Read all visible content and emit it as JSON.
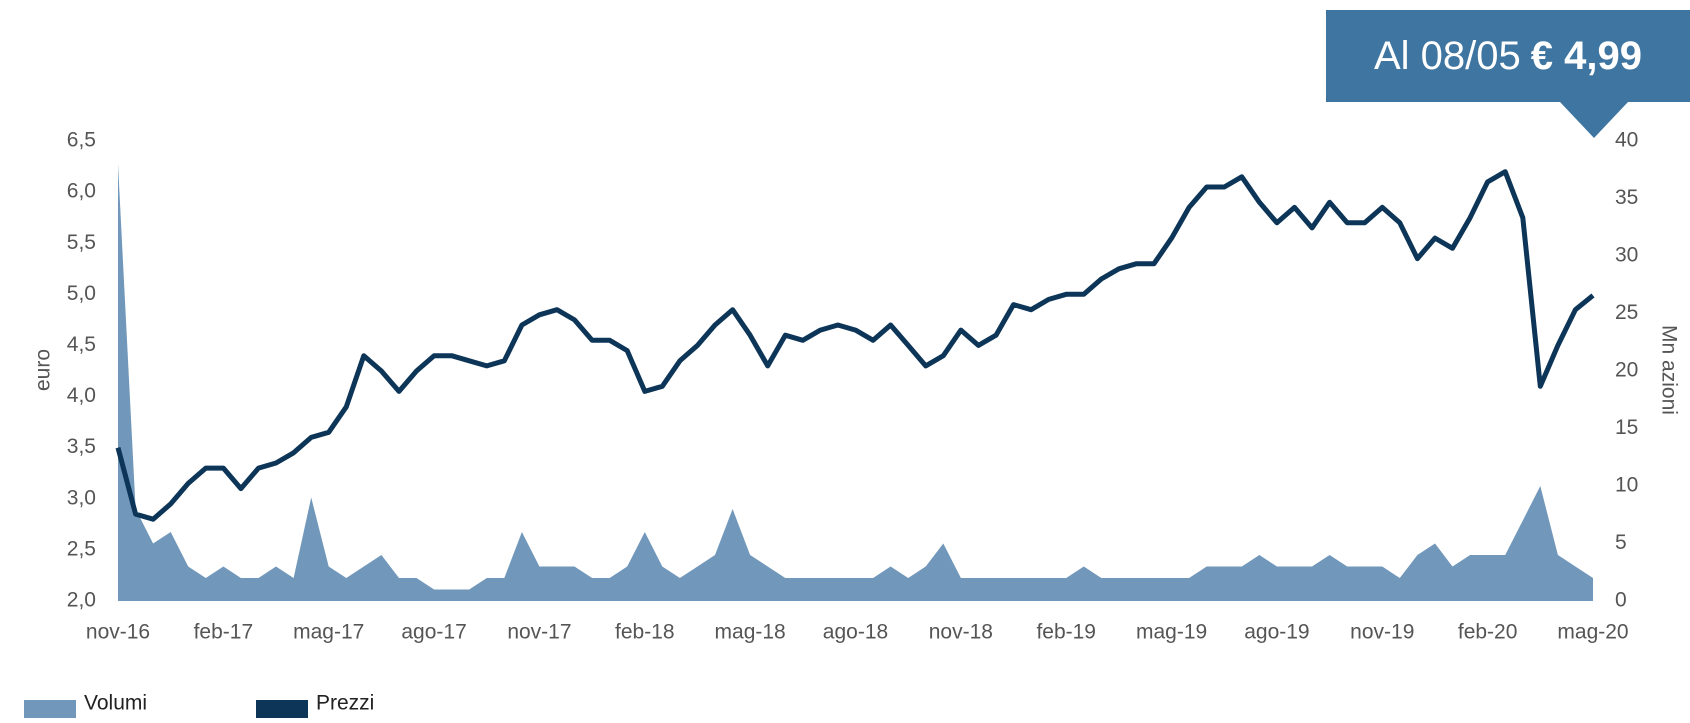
{
  "chart_data": {
    "type": "line-volume",
    "annotation": {
      "text": "Al 08/05",
      "value_label": "€ 4,99"
    },
    "ylabel": "euro",
    "y2label": "Mn azioni",
    "categories": [
      "nov-16",
      null,
      null,
      null,
      null,
      null,
      "feb-17",
      null,
      null,
      null,
      null,
      null,
      "mag-17",
      null,
      null,
      null,
      null,
      null,
      "ago-17",
      null,
      null,
      null,
      null,
      null,
      "nov-17",
      null,
      null,
      null,
      null,
      null,
      "feb-18",
      null,
      null,
      null,
      null,
      null,
      "mag-18",
      null,
      null,
      null,
      null,
      null,
      "ago-18",
      null,
      null,
      null,
      null,
      null,
      "nov-18",
      null,
      null,
      null,
      null,
      null,
      "feb-19",
      null,
      null,
      null,
      null,
      null,
      "mag-19",
      null,
      null,
      null,
      null,
      null,
      "ago-19",
      null,
      null,
      null,
      null,
      null,
      "nov-19",
      null,
      null,
      null,
      null,
      null,
      "feb-20",
      null,
      null,
      null,
      null,
      null,
      "mag-20"
    ],
    "series": [
      {
        "name": "Volumi",
        "color": "#7197ba",
        "axis": "y2",
        "kind": "area",
        "values": [
          38,
          8,
          5,
          6,
          3,
          2,
          3,
          2,
          2,
          3,
          2,
          9,
          3,
          2,
          3,
          4,
          2,
          2,
          1,
          1,
          1,
          2,
          2,
          6,
          3,
          3,
          3,
          2,
          2,
          3,
          6,
          3,
          2,
          3,
          4,
          8,
          4,
          3,
          2,
          2,
          2,
          2,
          2,
          2,
          3,
          2,
          3,
          5,
          2,
          2,
          2,
          2,
          2,
          2,
          2,
          3,
          2,
          2,
          2,
          2,
          2,
          2,
          3,
          3,
          3,
          4,
          3,
          3,
          3,
          4,
          3,
          3,
          3,
          2,
          4,
          5,
          3,
          4,
          4,
          4,
          7,
          10,
          4,
          3,
          2
        ]
      },
      {
        "name": "Prezzi",
        "color": "#0d3558",
        "kind": "line",
        "values": [
          3.5,
          2.85,
          2.8,
          2.95,
          3.15,
          3.3,
          3.3,
          3.1,
          3.3,
          3.35,
          3.45,
          3.6,
          3.65,
          3.9,
          4.4,
          4.25,
          4.05,
          4.25,
          4.4,
          4.4,
          4.35,
          4.3,
          4.35,
          4.7,
          4.8,
          4.85,
          4.75,
          4.55,
          4.55,
          4.45,
          4.05,
          4.1,
          4.35,
          4.5,
          4.7,
          4.85,
          4.6,
          4.3,
          4.6,
          4.55,
          4.65,
          4.7,
          4.65,
          4.55,
          4.7,
          4.5,
          4.3,
          4.4,
          4.65,
          4.5,
          4.6,
          4.9,
          4.85,
          4.95,
          5.0,
          5.0,
          5.15,
          5.25,
          5.3,
          5.3,
          5.55,
          5.85,
          6.05,
          6.05,
          6.15,
          5.9,
          5.7,
          5.85,
          5.65,
          5.9,
          5.7,
          5.7,
          5.85,
          5.7,
          5.35,
          5.55,
          5.45,
          5.75,
          6.1,
          6.2,
          5.75,
          4.1,
          4.5,
          4.85,
          4.99
        ]
      }
    ],
    "ylim": [
      2.0,
      6.5
    ],
    "yticks": [
      {
        "value": 2.0,
        "label": "2,0"
      },
      {
        "value": 2.5,
        "label": "2,5"
      },
      {
        "value": 3.0,
        "label": "3,0"
      },
      {
        "value": 3.5,
        "label": "3,5"
      },
      {
        "value": 4.0,
        "label": "4,0"
      },
      {
        "value": 4.5,
        "label": "4,5"
      },
      {
        "value": 5.0,
        "label": "5,0"
      },
      {
        "value": 5.5,
        "label": "5,5"
      },
      {
        "value": 6.0,
        "label": "6,0"
      },
      {
        "value": 6.5,
        "label": "6,5"
      }
    ],
    "y2lim": [
      0,
      40
    ],
    "y2ticks": [
      0,
      5,
      10,
      15,
      20,
      25,
      30,
      35,
      40
    ],
    "legend": "bottom-left",
    "grid": false
  }
}
